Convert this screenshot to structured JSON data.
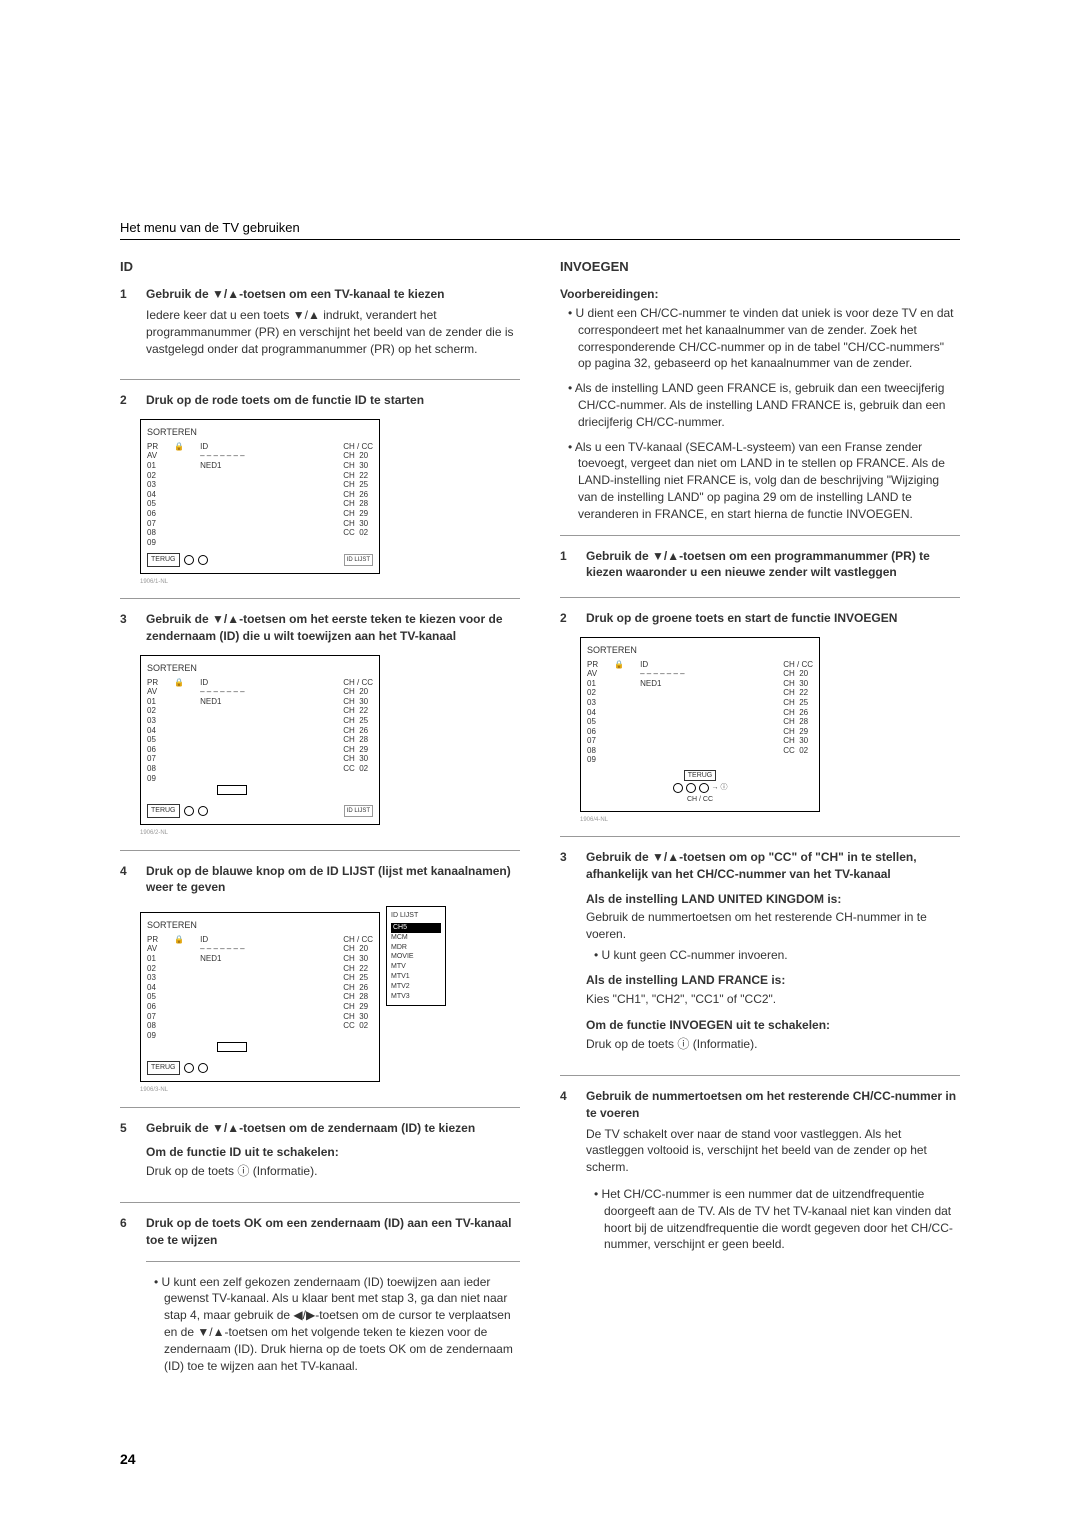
{
  "header": "Het menu van de TV gebruiken",
  "page_number": "24",
  "left": {
    "section_title": "ID",
    "step1": {
      "num": "1",
      "title": "Gebruik de ▼/▲-toetsen om een TV-kanaal te kiezen",
      "body": "Iedere keer dat u een toets ▼/▲ indrukt, verandert het programmanummer (PR) en verschijnt het beeld van de zender die is vastgelegd onder dat programmanummer (PR) op het scherm."
    },
    "step2": {
      "num": "2",
      "title": "Druk op de rode toets om de functie ID te starten"
    },
    "step3": {
      "num": "3",
      "title": "Gebruik de ▼/▲-toetsen om het eerste teken te kiezen voor de zendernaam (ID) die u wilt toewijzen aan het TV-kanaal"
    },
    "step4": {
      "num": "4",
      "title": "Druk op de blauwe knop om de ID LIJST (lijst met kanaalnamen) weer te geven"
    },
    "step5": {
      "num": "5",
      "title": "Gebruik de ▼/▲-toetsen om de zendernaam (ID) te kiezen",
      "sub_title": "Om de functie ID uit te schakelen:",
      "sub_body": "Druk op de toets ⓘ (Informatie)."
    },
    "step6": {
      "num": "6",
      "title": "Druk op de toets OK om een zendernaam (ID) aan een TV-kanaal toe te wijzen",
      "bullet": "U kunt een zelf gekozen zendernaam (ID) toewijzen aan ieder gewenst TV-kanaal. Als u klaar bent met stap 3, ga dan niet naar stap 4, maar gebruik de ◀/▶-toetsen om de cursor te verplaatsen en de ▼/▲-toetsen om het volgende teken te kiezen voor de zendernaam (ID). Druk hierna op de toets OK om de zendernaam (ID) toe te wijzen aan het TV-kanaal."
    }
  },
  "right": {
    "section_title": "INVOEGEN",
    "prep_title": "Voorbereidingen:",
    "prep_b1": "U dient een CH/CC-nummer te vinden dat uniek is voor deze TV en dat correspondeert met het kanaalnummer van de zender. Zoek het corresponderende CH/CC-nummer op in de tabel \"CH/CC-nummers\" op pagina 32, gebaseerd op het kanaalnummer van de zender.",
    "prep_b2": "Als de instelling LAND geen FRANCE is, gebruik dan een tweecijferig CH/CC-nummer. Als de instelling LAND FRANCE is, gebruik dan een driecijferig CH/CC-nummer.",
    "prep_b3": "Als u een TV-kanaal (SECAM-L-systeem) van een Franse zender toevoegt, vergeet dan niet om LAND in te stellen op FRANCE. Als de LAND-instelling niet FRANCE is, volg dan de beschrijving \"Wijziging van de instelling LAND\" op pagina 29 om de instelling LAND te veranderen in FRANCE, en start hierna de functie INVOEGEN.",
    "step1": {
      "num": "1",
      "title": "Gebruik de ▼/▲-toetsen om een programmanummer (PR) te kiezen waaronder u een nieuwe zender wilt vastleggen"
    },
    "step2": {
      "num": "2",
      "title": "Druk op de groene toets en start de functie INVOEGEN"
    },
    "step3": {
      "num": "3",
      "title": "Gebruik de ▼/▲-toetsen om op \"CC\" of \"CH\" in te stellen, afhankelijk van het CH/CC-nummer van het TV-kanaal",
      "sub1_title": "Als de instelling LAND UNITED KINGDOM is:",
      "sub1_body": "Gebruik de nummertoetsen om het resterende CH-nummer in te voeren.",
      "sub1_bullet": "U kunt geen CC-nummer invoeren.",
      "sub2_title": "Als de instelling LAND FRANCE is:",
      "sub2_body": "Kies \"CH1\", \"CH2\", \"CC1\" of \"CC2\".",
      "sub3_title": "Om de functie INVOEGEN uit te schakelen:",
      "sub3_body": "Druk op de toets ⓘ (Informatie)."
    },
    "step4": {
      "num": "4",
      "title": "Gebruik de nummertoetsen om het resterende CH/CC-nummer in te voeren",
      "body": "De TV schakelt over naar de stand voor vastleggen. Als het vastleggen voltooid is, verschijnt het beeld van de zender op het scherm.",
      "bullet": "Het CH/CC-nummer is een nummer dat de uitzendfrequentie doorgeeft aan de TV. Als de TV het TV-kanaal niet kan vinden dat hoort bij de uitzendfrequentie die wordt gegeven door het CH/CC-nummer, verschijnt er geen beeld."
    }
  },
  "sorteren": {
    "title": "SORTEREN",
    "pr_label": "PR",
    "lock_label": "🔒",
    "id_label": "ID",
    "chcc_label": "CH / CC",
    "pr_rows": [
      "AV",
      "01",
      "02",
      "03",
      "04",
      "05",
      "06",
      "07",
      "08",
      "09"
    ],
    "id_rows": [
      "– – – – – – –",
      "NED1",
      "",
      "",
      "",
      "",
      "",
      "",
      "",
      ""
    ],
    "ch_col": [
      "CH",
      "CH",
      "CH",
      "CH",
      "CH",
      "CH",
      "CH",
      "CH",
      "CC"
    ],
    "cc_col": [
      "20",
      "30",
      "22",
      "25",
      "26",
      "28",
      "29",
      "30",
      "02"
    ],
    "terug": "TERUG",
    "id_lijst_label": "ID LIJST",
    "chcc_bottom": "CH / CC"
  },
  "idlist": {
    "title": "ID LIJST",
    "items": [
      "CH5",
      "MCM",
      "MDR",
      "MOVIE",
      "MTV",
      "MTV1",
      "MTV2",
      "MTV3"
    ]
  }
}
